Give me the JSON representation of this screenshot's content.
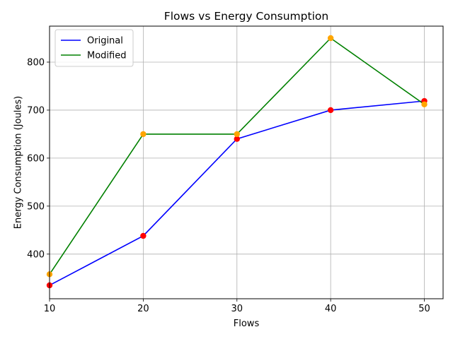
{
  "chart_data": {
    "type": "line",
    "title": "Flows vs Energy Consumption",
    "xlabel": "Flows",
    "ylabel": "Energy Consumption (Joules)",
    "x": [
      10,
      20,
      30,
      40,
      50
    ],
    "xlim": [
      10,
      52
    ],
    "ylim": [
      307,
      875
    ],
    "xticks": [
      10,
      20,
      30,
      40,
      50
    ],
    "yticks": [
      400,
      500,
      600,
      700,
      800
    ],
    "grid": true,
    "legend_position": "top-left",
    "series": [
      {
        "name": "Original",
        "values": [
          335,
          438,
          640,
          700,
          719
        ],
        "line_color": "#0000ff",
        "marker_color": "#ff0000"
      },
      {
        "name": "Modified",
        "values": [
          358,
          650,
          650,
          850,
          712
        ],
        "line_color": "#008000",
        "marker_color": "#ffa500"
      }
    ]
  }
}
